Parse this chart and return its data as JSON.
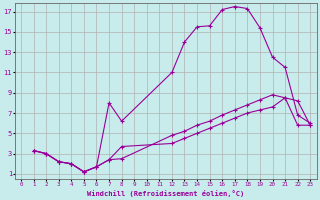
{
  "title": "",
  "xlabel": "Windchill (Refroidissement éolien,°C)",
  "ylabel": "",
  "bg_color": "#c8ecec",
  "line_color": "#990099",
  "grid_color": "#b0b0b0",
  "xlim": [
    -0.5,
    23.5
  ],
  "ylim": [
    0.5,
    17.8
  ],
  "xticks": [
    0,
    1,
    2,
    3,
    4,
    5,
    6,
    7,
    8,
    9,
    10,
    11,
    12,
    13,
    14,
    15,
    16,
    17,
    18,
    19,
    20,
    21,
    22,
    23
  ],
  "yticks": [
    1,
    3,
    5,
    7,
    9,
    11,
    13,
    15,
    17
  ],
  "line1_x": [
    1,
    2,
    3,
    4,
    5,
    6,
    7,
    8,
    12,
    13,
    14,
    15,
    16,
    17,
    18,
    19,
    20,
    21,
    22,
    23
  ],
  "line1_y": [
    3.3,
    3.0,
    2.2,
    2.0,
    1.2,
    1.7,
    2.4,
    2.5,
    4.8,
    5.2,
    5.8,
    6.2,
    6.8,
    7.3,
    7.8,
    8.3,
    8.8,
    8.5,
    8.2,
    5.8
  ],
  "line2_x": [
    1,
    2,
    3,
    4,
    5,
    6,
    7,
    8,
    12,
    13,
    14,
    15,
    16,
    17,
    18,
    19,
    20,
    21,
    22,
    23
  ],
  "line2_y": [
    3.3,
    3.0,
    2.2,
    2.0,
    1.2,
    1.7,
    8.0,
    6.2,
    11.0,
    14.0,
    15.5,
    15.6,
    17.2,
    17.5,
    17.3,
    15.4,
    12.5,
    11.5,
    6.8,
    6.0
  ],
  "line3_x": [
    1,
    2,
    3,
    4,
    5,
    6,
    7,
    8,
    12,
    13,
    14,
    15,
    16,
    17,
    18,
    19,
    20,
    21,
    22,
    23
  ],
  "line3_y": [
    3.3,
    3.0,
    2.2,
    2.0,
    1.2,
    1.7,
    2.4,
    3.7,
    4.0,
    4.5,
    5.0,
    5.5,
    6.0,
    6.5,
    7.0,
    7.3,
    7.6,
    8.5,
    5.8,
    5.8
  ]
}
